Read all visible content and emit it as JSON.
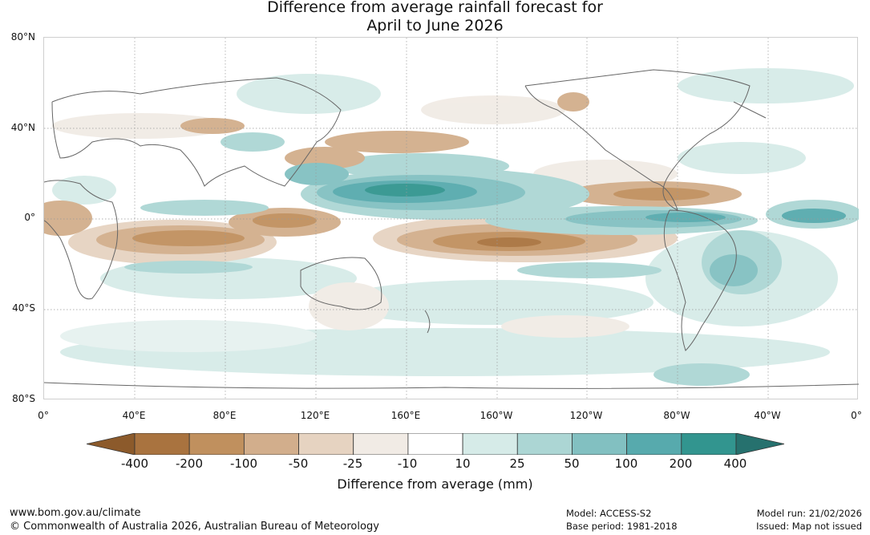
{
  "title": {
    "line1": "Difference from average rainfall forecast for",
    "line2": "April to June 2026"
  },
  "map": {
    "lat_labels": [
      "80°N",
      "40°N",
      "0°",
      "40°S",
      "80°S"
    ],
    "lon_labels": [
      "0°",
      "40°E",
      "80°E",
      "120°E",
      "160°E",
      "160°W",
      "120°W",
      "80°W",
      "40°W",
      "0°"
    ]
  },
  "colorbar": {
    "ticks": [
      "-400",
      "-200",
      "-100",
      "-50",
      "-25",
      "-10",
      "10",
      "25",
      "50",
      "100",
      "200",
      "400"
    ],
    "colors": [
      "#8c5a2b",
      "#a9733f",
      "#c0905e",
      "#d2ae8c",
      "#e6d3c1",
      "#f1ebe5",
      "#ffffff",
      "#d6ebe8",
      "#acd6d4",
      "#82c0c1",
      "#57aaad",
      "#32958f",
      "#26716e"
    ],
    "label": "Difference from average (mm)"
  },
  "footer": {
    "website": "www.bom.gov.au/climate",
    "copyright": "© Commonwealth of Australia 2026, Australian Bureau of Meteorology",
    "model": "Model: ACCESS-S2",
    "base_period": "Base period: 1981-2018",
    "model_run": "Model run: 21/02/2026",
    "issued": "Issued: Map not issued"
  }
}
